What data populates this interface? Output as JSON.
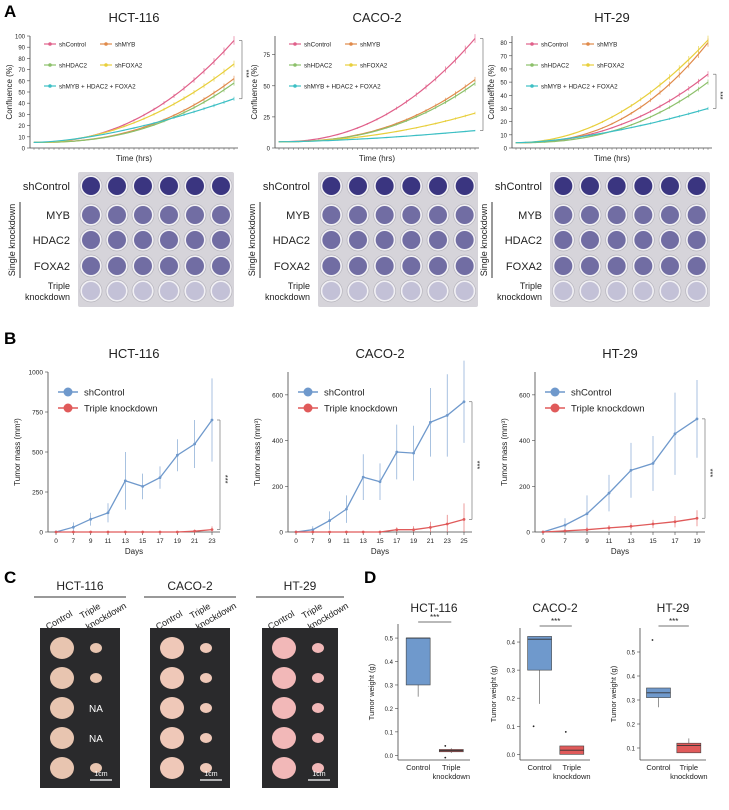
{
  "panels": {
    "A": "A",
    "B": "B",
    "C": "C",
    "D": "D"
  },
  "significance": "***",
  "colors": {
    "shControl": "#e0608a",
    "shMYB": "#e08a4a",
    "shHDAC2": "#8cc06a",
    "shFOXA2": "#e8cf3c",
    "triple": "#3cbfc4",
    "ctrl_blue": "#6f99cc",
    "tk_red": "#e05a5a",
    "well_dark": "#3a3580",
    "plate_bg": "#d6d4da",
    "photo_bg": "#2a2a2c"
  },
  "panelA": {
    "xlabel": "Time (hrs)",
    "ylabel": "Confluence (%)",
    "legend": [
      "shControl",
      "shMYB",
      "shHDAC2",
      "shFOXA2",
      "shMYB + HDAC2 + FOXA2"
    ],
    "plate_labels": {
      "control": "shControl",
      "group": "Single knockdown",
      "myb": "MYB",
      "hdac2": "HDAC2",
      "foxa2": "FOXA2",
      "triple_line1": "Triple",
      "triple_line2": "knockdown"
    },
    "charts": [
      {
        "title": "HCT-116",
        "ylim": [
          0,
          100
        ],
        "yticks": [
          0,
          10,
          20,
          30,
          40,
          50,
          60,
          70,
          80,
          90,
          100
        ],
        "final": {
          "shControl": 96,
          "shMYB": 62,
          "shHDAC2": 58,
          "shFOXA2": 75,
          "triple": 44
        },
        "start": 5
      },
      {
        "title": "CACO-2",
        "ylim": [
          0,
          90
        ],
        "yticks": [
          0,
          25,
          50,
          75
        ],
        "final": {
          "shControl": 88,
          "shMYB": 55,
          "shHDAC2": 52,
          "shFOXA2": 28,
          "triple": 14
        },
        "start": 5
      },
      {
        "title": "HT-29",
        "ylim": [
          0,
          85
        ],
        "yticks": [
          0,
          10,
          20,
          30,
          40,
          50,
          60,
          70,
          80
        ],
        "final": {
          "shControl": 56,
          "shMYB": 80,
          "shHDAC2": 50,
          "shFOXA2": 82,
          "triple": 30
        },
        "start": 4
      }
    ]
  },
  "panelB": {
    "xlabel": "Days",
    "ylabel": "Tumor mass (mm³)",
    "legend": [
      "shControl",
      "Triple knockdown"
    ],
    "chart_data": [
      {
        "type": "line",
        "title": "HCT-116",
        "ylim": [
          0,
          1000
        ],
        "yticks": [
          0,
          250,
          500,
          750,
          1000
        ],
        "x": [
          0,
          7,
          9,
          11,
          13,
          15,
          17,
          19,
          21,
          23
        ],
        "series": [
          {
            "name": "shControl",
            "values": [
              0,
              30,
              80,
              120,
              320,
              285,
              340,
              480,
              550,
              700
            ],
            "err": [
              0,
              30,
              40,
              60,
              180,
              80,
              70,
              100,
              150,
              260
            ]
          },
          {
            "name": "Triple knockdown",
            "values": [
              0,
              0,
              0,
              0,
              0,
              0,
              0,
              0,
              5,
              15
            ],
            "err": [
              0,
              0,
              0,
              0,
              0,
              0,
              0,
              0,
              10,
              20
            ]
          }
        ]
      },
      {
        "type": "line",
        "title": "CACO-2",
        "ylim": [
          0,
          700
        ],
        "yticks": [
          0,
          200,
          400,
          600
        ],
        "x": [
          0,
          7,
          9,
          11,
          13,
          15,
          17,
          19,
          21,
          23,
          25
        ],
        "series": [
          {
            "name": "shControl",
            "values": [
              0,
              10,
              50,
              100,
              240,
              220,
              350,
              345,
              480,
              510,
              570
            ],
            "err": [
              0,
              15,
              40,
              60,
              100,
              80,
              120,
              120,
              150,
              180,
              180
            ]
          },
          {
            "name": "Triple knockdown",
            "values": [
              0,
              0,
              0,
              0,
              0,
              0,
              10,
              10,
              20,
              35,
              55
            ],
            "err": [
              0,
              0,
              0,
              0,
              0,
              0,
              10,
              15,
              25,
              40,
              70
            ]
          }
        ]
      },
      {
        "type": "line",
        "title": "HT-29",
        "ylim": [
          0,
          700
        ],
        "yticks": [
          0,
          200,
          400,
          600
        ],
        "x": [
          0,
          7,
          9,
          11,
          13,
          15,
          17,
          19
        ],
        "series": [
          {
            "name": "shControl",
            "values": [
              0,
              30,
              80,
              170,
              270,
              300,
              430,
              495
            ],
            "err": [
              0,
              30,
              80,
              80,
              120,
              120,
              180,
              170
            ]
          },
          {
            "name": "Triple knockdown",
            "values": [
              0,
              5,
              10,
              18,
              25,
              35,
              45,
              60
            ],
            "err": [
              0,
              5,
              10,
              12,
              15,
              18,
              25,
              35
            ]
          }
        ]
      }
    ]
  },
  "panelC": {
    "header_control": "Control",
    "header_triple_1": "Triple",
    "header_triple_2": "knockdown",
    "scale_bar": "1cm",
    "na": "NA",
    "groups": [
      {
        "title": "HCT-116",
        "na_rows": [
          2,
          3
        ]
      },
      {
        "title": "CACO-2",
        "na_rows": []
      },
      {
        "title": "HT-29",
        "na_rows": []
      }
    ]
  },
  "panelD": {
    "ylabel": "Tumor weight (g)",
    "xlabels": [
      "Control",
      "Triple",
      "knockdown"
    ],
    "chart_data": [
      {
        "type": "box",
        "title": "HCT-116",
        "ylim": [
          -0.02,
          0.56
        ],
        "yticks": [
          0.0,
          0.1,
          0.2,
          0.3,
          0.4,
          0.5
        ],
        "series": [
          {
            "name": "Control",
            "q1": 0.3,
            "median": 0.5,
            "q3": 0.5,
            "whisker_low": 0.25,
            "whisker_high": 0.5,
            "outliers": []
          },
          {
            "name": "Triple knockdown",
            "q1": 0.015,
            "median": 0.02,
            "q3": 0.025,
            "whisker_low": 0.01,
            "whisker_high": 0.03,
            "outliers": [
              0.04,
              -0.01
            ]
          }
        ]
      },
      {
        "type": "box",
        "title": "CACO-2",
        "ylim": [
          -0.02,
          0.45
        ],
        "yticks": [
          0.0,
          0.1,
          0.2,
          0.3,
          0.4
        ],
        "series": [
          {
            "name": "Control",
            "q1": 0.3,
            "median": 0.41,
            "q3": 0.42,
            "whisker_low": 0.18,
            "whisker_high": 0.42,
            "outliers": [
              0.1
            ]
          },
          {
            "name": "Triple knockdown",
            "q1": 0.0,
            "median": 0.015,
            "q3": 0.03,
            "whisker_low": 0.0,
            "whisker_high": 0.03,
            "outliers": [
              0.08
            ]
          }
        ]
      },
      {
        "type": "box",
        "title": "HT-29",
        "ylim": [
          0.05,
          0.6
        ],
        "yticks": [
          0.1,
          0.2,
          0.3,
          0.4,
          0.5
        ],
        "series": [
          {
            "name": "Control",
            "q1": 0.31,
            "median": 0.33,
            "q3": 0.35,
            "whisker_low": 0.27,
            "whisker_high": 0.35,
            "outliers": [
              0.55
            ]
          },
          {
            "name": "Triple knockdown",
            "q1": 0.08,
            "median": 0.11,
            "q3": 0.12,
            "whisker_low": 0.08,
            "whisker_high": 0.14,
            "outliers": []
          }
        ]
      }
    ]
  }
}
